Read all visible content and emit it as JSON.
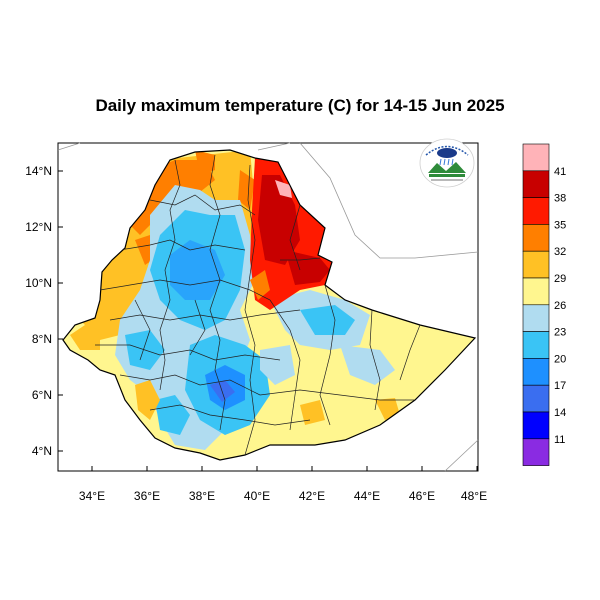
{
  "title": "Daily maximum temperature (C) for 14-15 Jun 2025",
  "map": {
    "x_ticks": [
      "34°E",
      "36°E",
      "38°E",
      "40°E",
      "42°E",
      "44°E",
      "46°E",
      "48°E"
    ],
    "y_ticks": [
      "14°N",
      "12°N",
      "10°N",
      "8°N",
      "6°N",
      "4°N"
    ],
    "x_range": [
      33.0,
      48.0
    ],
    "y_range": [
      3.2,
      15.0
    ]
  },
  "colorbar": {
    "labels": [
      "41",
      "38",
      "35",
      "32",
      "29",
      "26",
      "23",
      "20",
      "17",
      "14",
      "11"
    ],
    "colors": [
      "#ffb3b8",
      "#c80000",
      "#ff1a00",
      "#ff7f00",
      "#ffc125",
      "#fff68f",
      "#b0dcf0",
      "#3ac4f5",
      "#1e90ff",
      "#3a6ef0",
      "#0000ff",
      "#8a2be2"
    ]
  },
  "logo": {
    "icon": "meteorology-agency-logo"
  }
}
